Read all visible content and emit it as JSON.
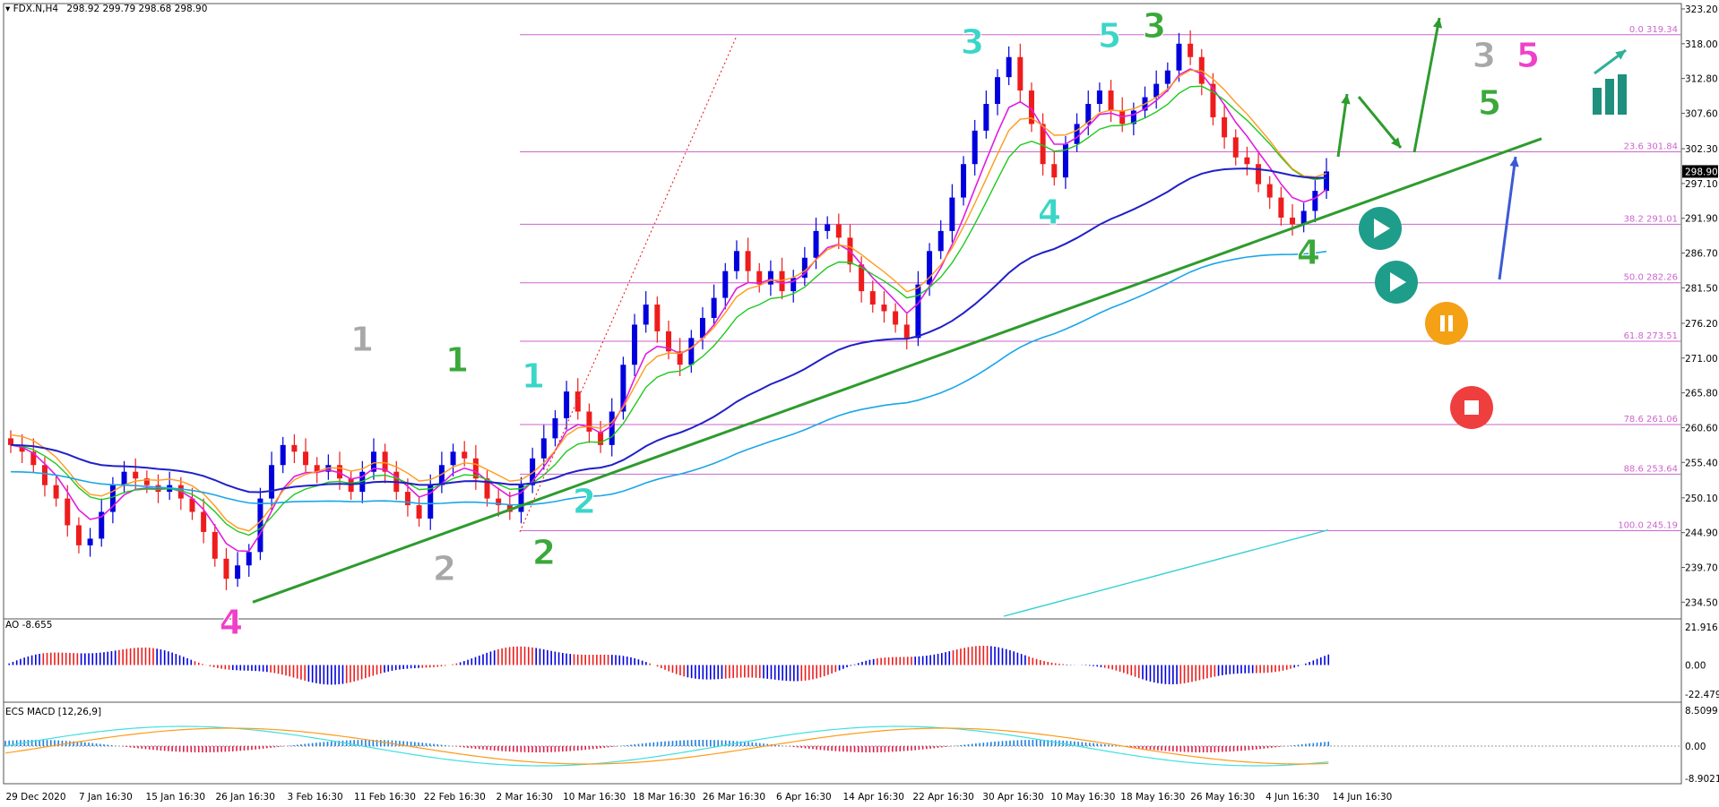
{
  "header": {
    "symbol": "FDX.N,H4",
    "ohlc": "298.92 299.79 298.68 298.90"
  },
  "panels": {
    "ao_label": "AO -8.655",
    "macd_label": "ECS MACD [12,26,9]"
  },
  "colors": {
    "bull": "#0000dd",
    "bear": "#ee1c1c",
    "neutral": "#8c8c8c",
    "fib": "#cc66cc",
    "trend": "#2e9b2e",
    "ma_blue": "#2020c8",
    "ma_cyan": "#1aa6e8",
    "ma_orange": "#ff9a1a",
    "ma_red": "#ee5522",
    "ma_green": "#1fc81f",
    "ma_magenta": "#e01ee0"
  },
  "chart_data": {
    "type": "candlestick",
    "symbol": "FDX.N",
    "timeframe": "H4",
    "price_axis": [
      "323.20",
      "318.00",
      "312.80",
      "307.60",
      "302.30",
      "297.10",
      "291.90",
      "286.70",
      "281.50",
      "276.20",
      "271.00",
      "265.80",
      "260.60",
      "255.40",
      "250.10",
      "244.90",
      "239.70",
      "234.50"
    ],
    "ylim": [
      232.0,
      324.0
    ],
    "last_price": "298.90",
    "time_axis": [
      "29 Dec 2020",
      "7 Jan 16:30",
      "15 Jan 16:30",
      "26 Jan 16:30",
      "3 Feb 16:30",
      "11 Feb 16:30",
      "22 Feb 16:30",
      "2 Mar 16:30",
      "10 Mar 16:30",
      "18 Mar 16:30",
      "26 Mar 16:30",
      "6 Apr 16:30",
      "14 Apr 16:30",
      "22 Apr 16:30",
      "30 Apr 16:30",
      "10 May 16:30",
      "18 May 16:30",
      "26 May 16:30",
      "4 Jun 16:30",
      "14 Jun 16:30"
    ],
    "fib_levels": [
      {
        "label": "0.0 319.34",
        "price": 319.34
      },
      {
        "label": "23.6 301.84",
        "price": 301.84
      },
      {
        "label": "38.2 291.01",
        "price": 291.01
      },
      {
        "label": "50.0 282.26",
        "price": 282.26
      },
      {
        "label": "61.8 273.51",
        "price": 273.51
      },
      {
        "label": "78.6 261.06",
        "price": 261.06
      },
      {
        "label": "88.6 253.64",
        "price": 253.64
      },
      {
        "label": "100.0 245.19",
        "price": 245.19
      }
    ],
    "series_close": [
      258,
      257,
      255,
      252,
      250,
      246,
      243,
      244,
      248,
      252,
      254,
      253,
      252,
      251,
      252,
      250,
      248,
      245,
      241,
      238,
      240,
      242,
      250,
      255,
      258,
      257,
      255,
      254,
      255,
      253,
      251,
      254,
      257,
      254,
      251,
      249,
      247,
      252,
      255,
      257,
      256,
      253,
      250,
      249,
      248,
      252,
      256,
      259,
      262,
      266,
      263,
      260,
      258,
      263,
      270,
      276,
      279,
      275,
      272,
      270,
      274,
      277,
      280,
      284,
      287,
      284,
      282,
      284,
      281,
      283,
      286,
      290,
      291,
      289,
      285,
      281,
      279,
      278,
      276,
      274,
      282,
      287,
      290,
      295,
      300,
      305,
      309,
      313,
      316,
      311,
      306,
      300,
      298,
      303,
      306,
      309,
      311,
      308,
      306,
      308,
      310,
      312,
      314,
      318,
      316,
      312,
      307,
      304,
      301,
      300,
      297,
      295,
      292,
      291,
      293,
      296,
      298.9
    ],
    "waves": [
      {
        "label": "1",
        "color": "gray"
      },
      {
        "label": "2",
        "color": "gray"
      },
      {
        "label": "1",
        "color": "green"
      },
      {
        "label": "2",
        "color": "green"
      },
      {
        "label": "1",
        "color": "teal"
      },
      {
        "label": "2",
        "color": "teal"
      },
      {
        "label": "3",
        "color": "teal"
      },
      {
        "label": "4",
        "color": "teal"
      },
      {
        "label": "5",
        "color": "teal"
      },
      {
        "label": "3",
        "color": "green"
      },
      {
        "label": "4",
        "color": "green"
      },
      {
        "label": "4",
        "color": "magenta"
      },
      {
        "label": "3",
        "color": "gray"
      },
      {
        "label": "5",
        "color": "magenta"
      },
      {
        "label": "5",
        "color": "green"
      }
    ],
    "ao": {
      "label": "AO -8.655",
      "axis": [
        "21.916",
        "0.00",
        "-22.479"
      ],
      "ylim": [
        -22.479,
        21.916
      ]
    },
    "macd": {
      "label": "ECS MACD [12,26,9]",
      "axis": [
        "8.5099",
        "0.00",
        "-8.9021"
      ],
      "ylim": [
        -8.9021,
        8.5099
      ]
    }
  }
}
